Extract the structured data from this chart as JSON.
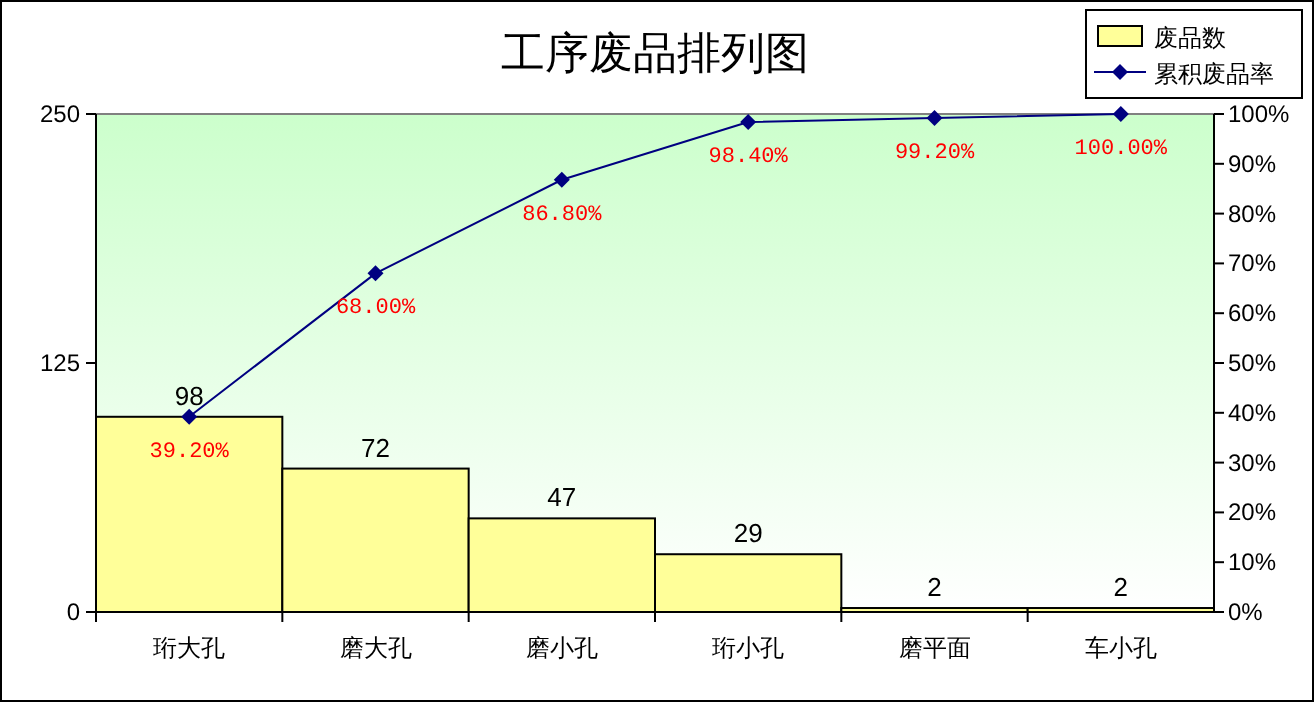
{
  "chart_data": {
    "type": "bar",
    "title": "工序废品排列图",
    "categories": [
      "珩大孔",
      "磨大孔",
      "磨小孔",
      "珩小孔",
      "磨平面",
      "车小孔"
    ],
    "series": [
      {
        "name": "废品数",
        "color": "#ffff99",
        "values": [
          98,
          72,
          47,
          29,
          2,
          2
        ],
        "value_labels": [
          "98",
          "72",
          "47",
          "29",
          "2",
          "2"
        ]
      },
      {
        "name": "累积废品率",
        "type": "line",
        "axis": "y2",
        "color": "#000080",
        "marker": "diamond",
        "values": [
          39.2,
          68,
          86.8,
          98.4,
          99.2,
          100
        ],
        "value_labels": [
          "39.20%",
          "68.00%",
          "86.80%",
          "98.40%",
          "99.20%",
          "100.00%"
        ]
      }
    ],
    "ylim": [
      0,
      250
    ],
    "yticks": [
      0,
      125,
      250
    ],
    "y2lim": [
      0,
      100
    ],
    "y2ticks": [
      {
        "value": 0,
        "label": "0%"
      },
      {
        "value": 10,
        "label": "10%"
      },
      {
        "value": 20,
        "label": "20%"
      },
      {
        "value": 30,
        "label": "30%"
      },
      {
        "value": 40,
        "label": "40%"
      },
      {
        "value": 50,
        "label": "50%"
      },
      {
        "value": 60,
        "label": "60%"
      },
      {
        "value": 70,
        "label": "70%"
      },
      {
        "value": 80,
        "label": "80%"
      },
      {
        "value": 90,
        "label": "90%"
      },
      {
        "value": 100,
        "label": "100%"
      }
    ],
    "legend": "top right",
    "grid": false
  }
}
